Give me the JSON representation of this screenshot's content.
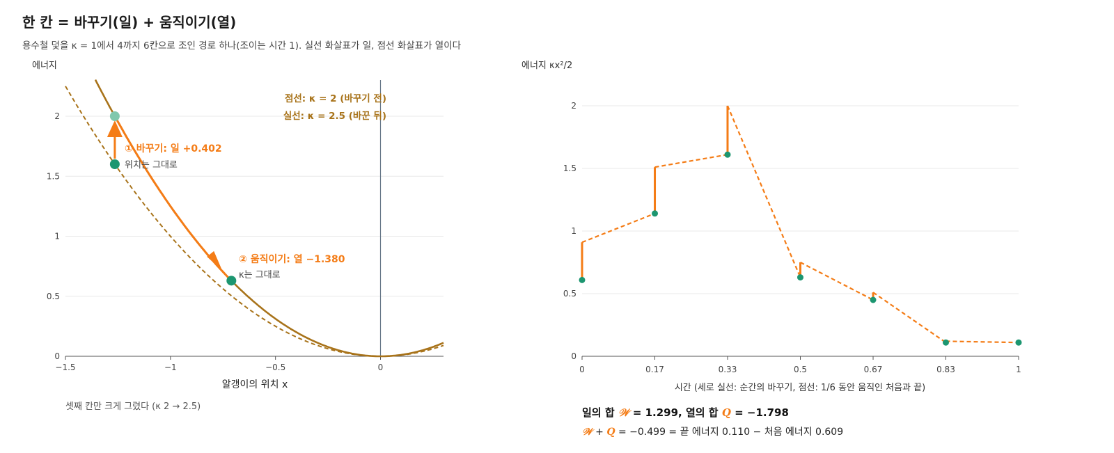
{
  "header": {
    "title": "한 칸 = 바꾸기(일) + 움직이기(열)",
    "subtitle": "용수철 덫을 κ = 1에서 4까지 6칸으로 조인 경로 하나(조이는 시간 1). 실선 화살표가 일, 점선 화살표가 열이다"
  },
  "colors": {
    "orange": "#f47c16",
    "green": "#1c9670",
    "curve": "#a8731a",
    "grid": "#e8e8e8",
    "axis": "#555555"
  },
  "chart_data": [
    {
      "type": "line",
      "ylabel": "에너지",
      "xlabel": "알갱이의 위치 x",
      "xlim": [
        -1.5,
        0.3
      ],
      "ylim": [
        0,
        2.4
      ],
      "x_ticks": [
        -1.5,
        -1,
        -0.5,
        0
      ],
      "x_tick_labels": [
        "−1.5",
        "−1",
        "−0.5",
        "0"
      ],
      "y_ticks": [
        0,
        0.5,
        1,
        1.5,
        2
      ],
      "y_tick_labels": [
        "0",
        "0.5",
        "1",
        "1.5",
        "2"
      ],
      "grid": true,
      "legend": [
        "점선: κ = 2 (바꾸기 전)",
        "실선: κ = 2.5 (바꾼 뒤)"
      ],
      "series": [
        {
          "kappa": 2,
          "style": "dashed"
        },
        {
          "kappa": 2.5,
          "style": "solid"
        }
      ],
      "points": {
        "start": {
          "x": -1.265,
          "y": 1.6
        },
        "after_switch": {
          "x": -1.265,
          "y": 2.0
        },
        "after_move": {
          "x": -0.71,
          "y": 0.63
        }
      },
      "annotations": {
        "switch_label": "① 바꾸기: 일 +0.402",
        "switch_sub": "위치는 그대로",
        "move_label": "② 움직이기: 열 −1.380",
        "move_sub": "κ는 그대로"
      },
      "note": "셋째 칸만 크게 그렸다 (κ 2 → 2.5)"
    },
    {
      "type": "line",
      "ylabel": "에너지 κx²/2",
      "xlabel": "시간 (세로 실선: 순간의 바꾸기, 점선: 1/6 동안 움직인 처음과 끝)",
      "xlim": [
        0,
        1
      ],
      "ylim": [
        0,
        2.15
      ],
      "x_ticks": [
        0,
        0.1667,
        0.3333,
        0.5,
        0.6667,
        0.8333,
        1
      ],
      "x_tick_labels": [
        "0",
        "0.17",
        "0.33",
        "0.5",
        "0.67",
        "0.83",
        "1"
      ],
      "y_ticks": [
        0,
        0.5,
        1,
        1.5,
        2
      ],
      "y_tick_labels": [
        "0",
        "0.5",
        "1",
        "1.5",
        "2"
      ],
      "grid": true,
      "steps": [
        {
          "t0": 0,
          "t1": 0.1667,
          "e_before": 0.609,
          "e_switched": 0.91,
          "e_end": 1.14
        },
        {
          "t0": 0.1667,
          "t1": 0.3333,
          "e_before": 1.14,
          "e_switched": 1.51,
          "e_end": 1.61
        },
        {
          "t0": 0.3333,
          "t1": 0.5,
          "e_before": 1.61,
          "e_switched": 2.0,
          "e_end": 0.63
        },
        {
          "t0": 0.5,
          "t1": 0.6667,
          "e_before": 0.63,
          "e_switched": 0.75,
          "e_end": 0.45
        },
        {
          "t0": 0.6667,
          "t1": 0.8333,
          "e_before": 0.45,
          "e_switched": 0.51,
          "e_end": 0.11
        },
        {
          "t0": 0.8333,
          "t1": 1,
          "e_before": 0.11,
          "e_switched": 0.12,
          "e_end": 0.11
        }
      ],
      "summary": {
        "line1_a": "일의 합 ",
        "work_symbol": "𝒲",
        "line1_b": " = 1.299, 열의 합 ",
        "heat_symbol": "Q",
        "line1_c": " = −1.798",
        "line2_a": " + ",
        "line2_b": " = −0.499 = 끝 에너지 0.110 − 처음 에너지 0.609"
      }
    }
  ]
}
